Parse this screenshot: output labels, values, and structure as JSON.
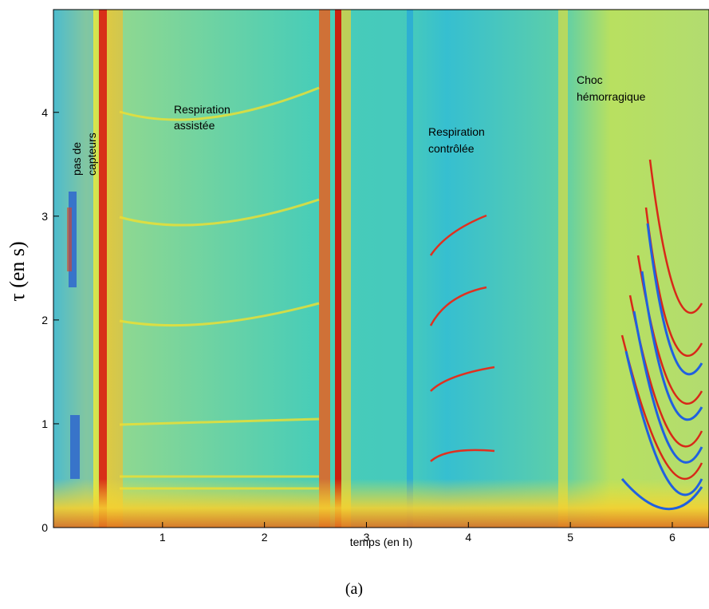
{
  "chart_data": {
    "type": "spectrogram",
    "xlabel": "temps (en h)",
    "ylabel": "τ (en s)",
    "caption": "(a)",
    "xlim": [
      -0.07,
      6.36
    ],
    "xticks": [
      1,
      2,
      3,
      4,
      5,
      6
    ],
    "ylim": [
      0,
      4.99
    ],
    "yticks": [
      0,
      1,
      2,
      3,
      4
    ],
    "annotations": [
      [
        "pas de",
        "capteurs"
      ],
      [
        "Respiration",
        "assistée"
      ],
      [
        "Respiration",
        "contrôlée"
      ],
      [
        "Choc",
        "hémorragique"
      ]
    ]
  }
}
